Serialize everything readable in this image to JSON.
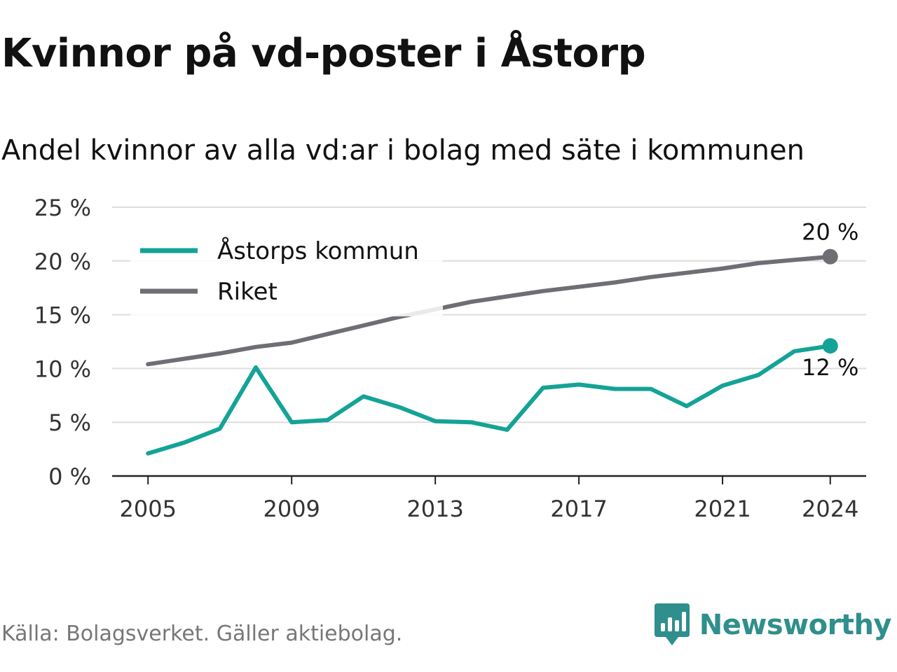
{
  "title": "Kvinnor på vd-poster i Åstorp",
  "subtitle": "Andel kvinnor av alla vd:ar i bolag med säte i kommunen",
  "source": "Källa: Bolagsverket. Gäller aktiebolag.",
  "brand": {
    "name": "Newsworthy",
    "icon": "newsworthy-bar-chart-icon",
    "color": "#2f8f8c"
  },
  "chart_data": {
    "type": "line",
    "x": [
      2005,
      2006,
      2007,
      2008,
      2009,
      2010,
      2011,
      2012,
      2013,
      2014,
      2015,
      2016,
      2017,
      2018,
      2019,
      2020,
      2021,
      2022,
      2023,
      2024
    ],
    "series": [
      {
        "name": "Åstorps kommun",
        "color": "#14a396",
        "values": [
          2.1,
          3.1,
          4.4,
          10.1,
          5.0,
          5.2,
          7.4,
          6.4,
          5.1,
          5.0,
          4.3,
          8.2,
          8.5,
          8.1,
          8.1,
          6.5,
          8.4,
          9.4,
          11.6,
          12.1
        ],
        "end_label": "12 %"
      },
      {
        "name": "Riket",
        "color": "#6e6e74",
        "values": [
          10.4,
          10.9,
          11.4,
          12.0,
          12.4,
          13.2,
          14.0,
          14.8,
          15.5,
          16.2,
          16.7,
          17.2,
          17.6,
          18.0,
          18.5,
          18.9,
          19.3,
          19.8,
          20.1,
          20.4
        ],
        "end_label": "20 %"
      }
    ],
    "xticks": [
      2005,
      2009,
      2013,
      2017,
      2021,
      2024
    ],
    "xtick_labels": [
      "2005",
      "2009",
      "2013",
      "2017",
      "2021",
      "2024"
    ],
    "yticks": [
      0,
      5,
      10,
      15,
      20,
      25
    ],
    "ytick_labels": [
      "0 %",
      "5 %",
      "10 %",
      "15 %",
      "20 %",
      "25 %"
    ],
    "xlim": [
      2004,
      2025
    ],
    "ylim": [
      0,
      25
    ],
    "grid": true,
    "legend": "top-left",
    "xlabel": "",
    "ylabel": ""
  }
}
